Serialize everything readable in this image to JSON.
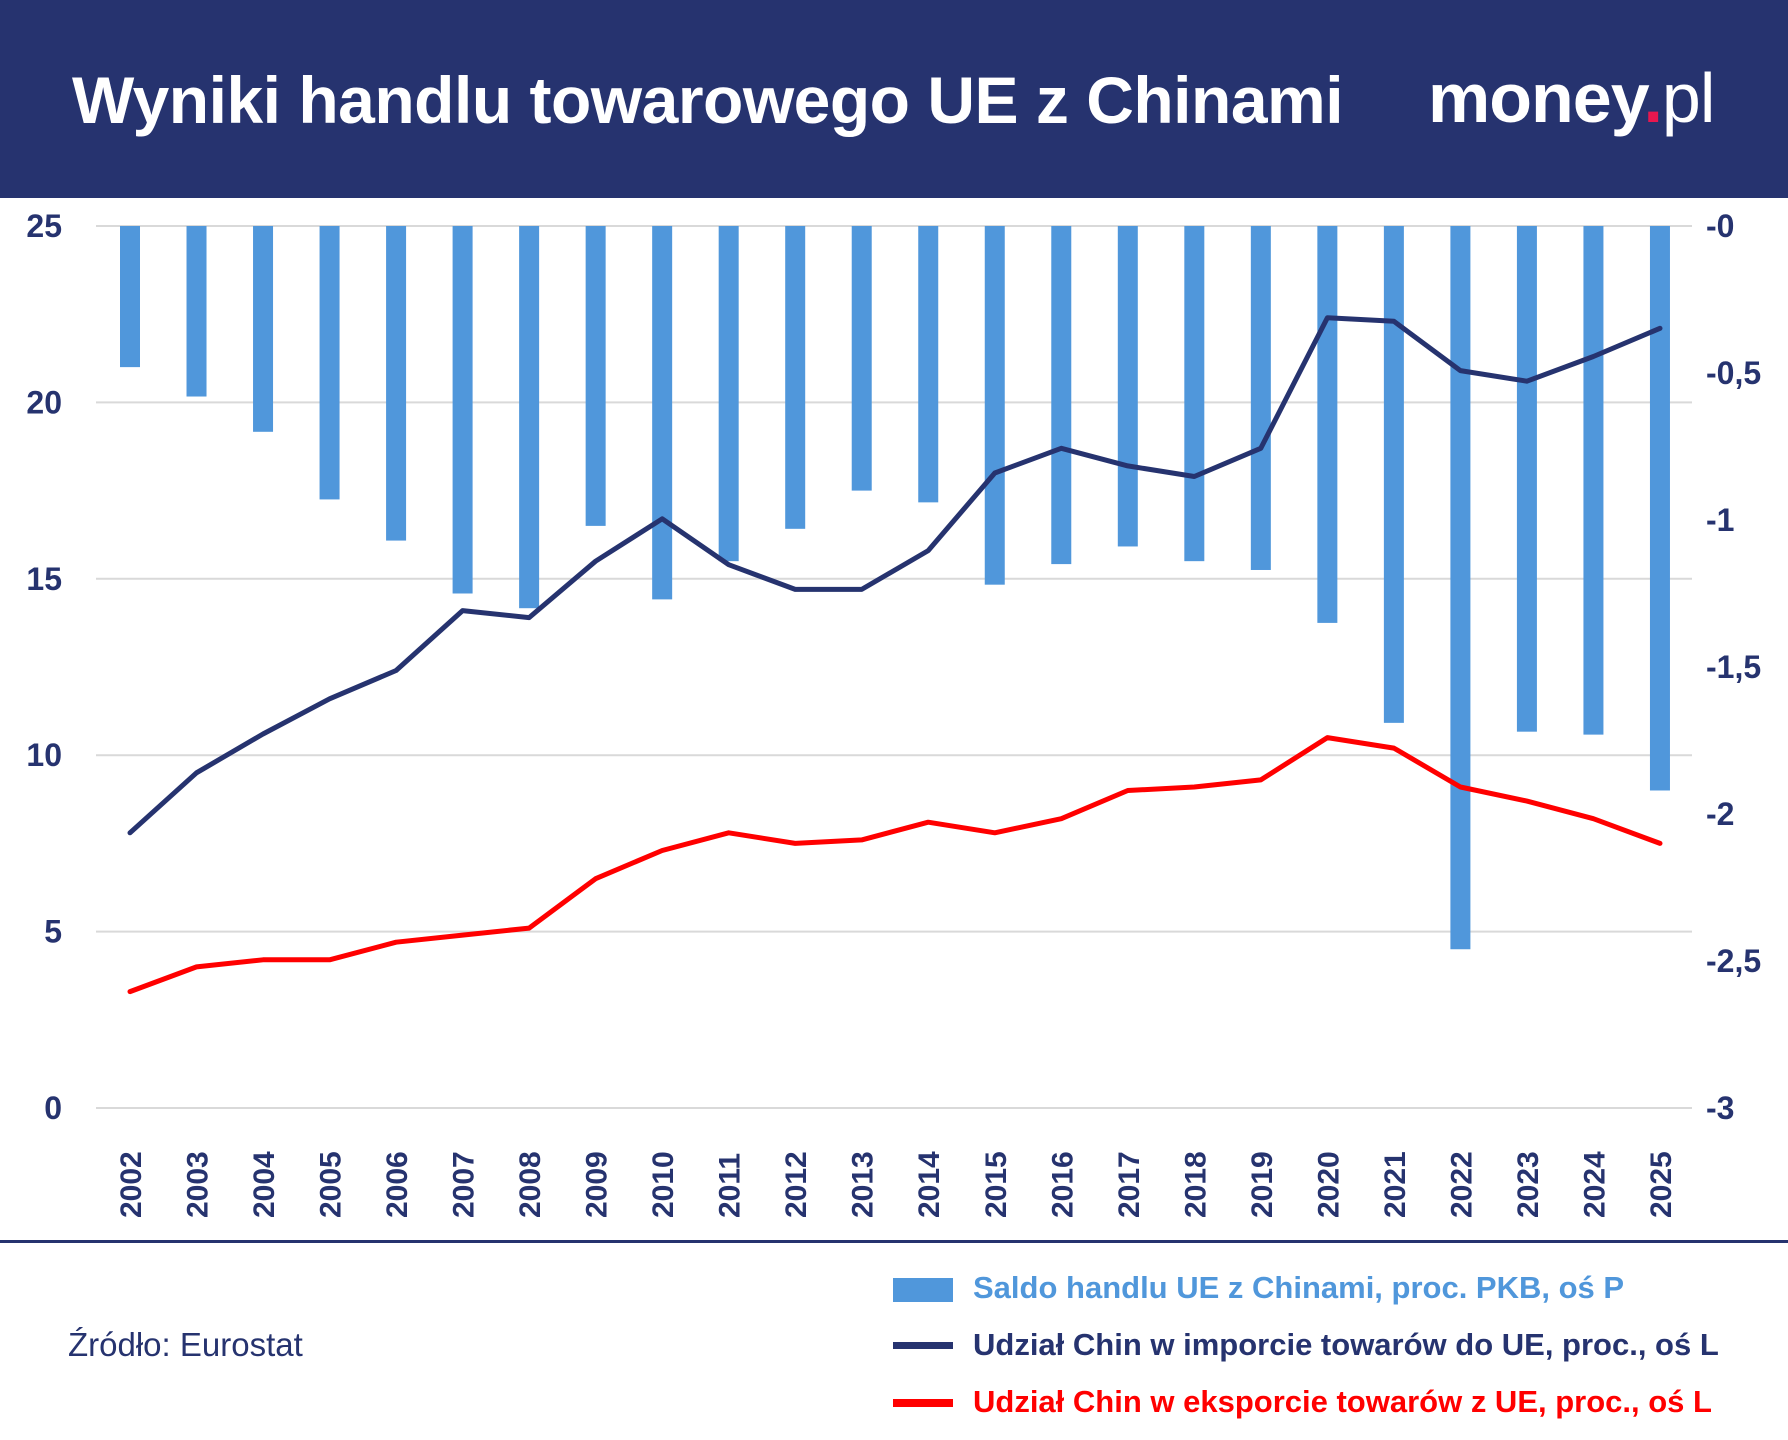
{
  "header": {
    "title": "Wyniki handlu towarowego UE z Chinami",
    "logo": {
      "main": "money",
      "dot": ".",
      "suffix": "pl"
    }
  },
  "colors": {
    "header_bg": "#26336f",
    "bars": "#5097db",
    "import_line": "#26336f",
    "export_line": "#ff0000",
    "axis_text": "#26336f",
    "grid": "#d9d9d9",
    "logo_dot": "#e8174f"
  },
  "chart_data": {
    "type": "bar",
    "title": "Wyniki handlu towarowego UE z Chinami",
    "categories": [
      "2002",
      "2003",
      "2004",
      "2005",
      "2006",
      "2007",
      "2008",
      "2009",
      "2010",
      "2011",
      "2012",
      "2013",
      "2014",
      "2015",
      "2016",
      "2017",
      "2018",
      "2019",
      "2020",
      "2021",
      "2022",
      "2023",
      "2024",
      "2025"
    ],
    "y_left": {
      "range": [
        0,
        25
      ],
      "ticks": [
        "0",
        "5",
        "10",
        "15",
        "20",
        "25"
      ]
    },
    "y_right": {
      "range": [
        -3,
        0
      ],
      "ticks": [
        "-3",
        "-2,5",
        "-2",
        "-1,5",
        "-1",
        "-0,5",
        "-0"
      ]
    },
    "grid": true,
    "legend_position": "bottom-right",
    "series": [
      {
        "name": "Saldo handlu UE z Chinami, proc. PKB, oś P",
        "type": "bar",
        "axis": "right",
        "values": [
          -0.48,
          -0.58,
          -0.7,
          -0.93,
          -1.07,
          -1.25,
          -1.3,
          -1.02,
          -1.27,
          -1.14,
          -1.03,
          -0.9,
          -0.94,
          -1.22,
          -1.15,
          -1.09,
          -1.14,
          -1.17,
          -1.35,
          -1.69,
          -2.46,
          -1.72,
          -1.73,
          -1.92
        ]
      },
      {
        "name": "Udział Chin w imporcie towarów do UE, proc., oś L",
        "type": "line",
        "axis": "left",
        "values": [
          7.8,
          9.5,
          10.6,
          11.6,
          12.4,
          14.1,
          13.9,
          15.5,
          16.7,
          15.4,
          14.7,
          14.7,
          15.8,
          18.0,
          18.7,
          18.2,
          17.9,
          18.7,
          22.4,
          22.3,
          20.9,
          20.6,
          21.3,
          22.1
        ]
      },
      {
        "name": "Udział Chin w eksporcie towarów z UE, proc., oś L",
        "type": "line",
        "axis": "left",
        "values": [
          3.3,
          4.0,
          4.2,
          4.2,
          4.7,
          4.9,
          5.1,
          6.5,
          7.3,
          7.8,
          7.5,
          7.6,
          8.1,
          7.8,
          8.2,
          9.0,
          9.1,
          9.3,
          10.5,
          10.2,
          9.1,
          8.7,
          8.2,
          7.5
        ]
      }
    ]
  },
  "source": "Źródło: Eurostat"
}
